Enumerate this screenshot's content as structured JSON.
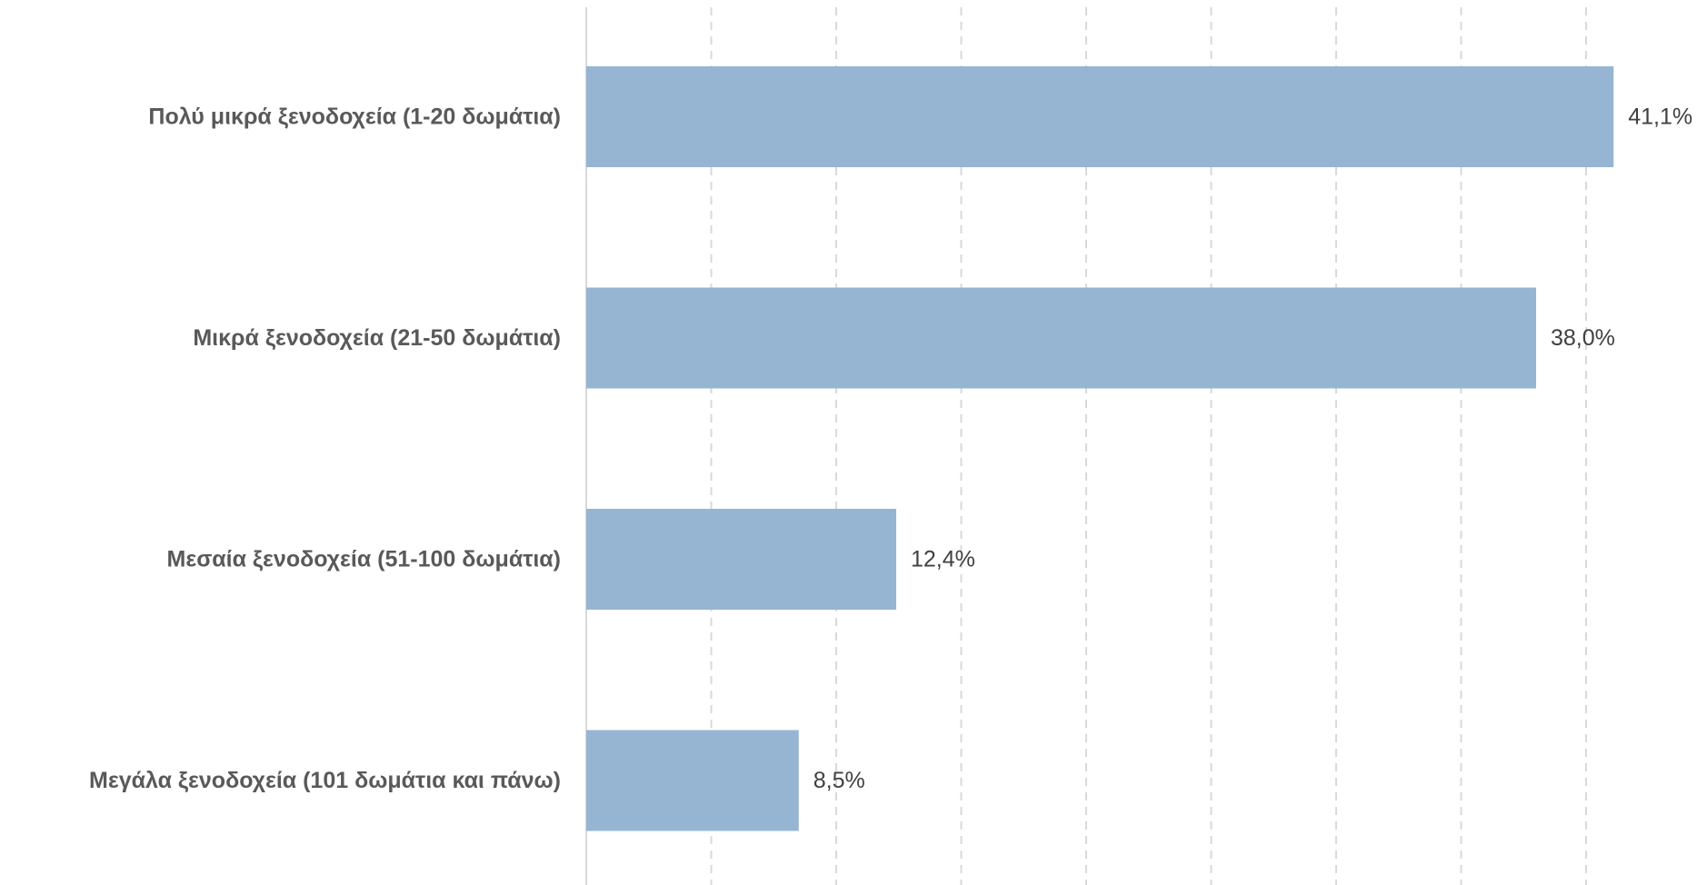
{
  "chart_data": {
    "type": "bar",
    "orientation": "horizontal",
    "categories": [
      "Πολύ μικρά ξενοδοχεία (1-20 δωμάτια)",
      "Μικρά ξενοδοχεία (21-50 δωμάτια)",
      "Μεσαία ξενοδοχεία (51-100 δωμάτια)",
      "Μεγάλα ξενοδοχεία (101 δωμάτια και πάνω)"
    ],
    "values": [
      41.1,
      38.0,
      12.4,
      8.5
    ],
    "value_labels": [
      "41,1%",
      "38,0%",
      "12,4%",
      "8,5%"
    ],
    "xlim": [
      0,
      45
    ],
    "x_gridlines": [
      5,
      10,
      15,
      20,
      25,
      30,
      35,
      40
    ],
    "grid": "vertical-dashed",
    "bar_color": "#95b5d3",
    "grid_color": "#d9d9d9",
    "legend": "none",
    "title": "",
    "xlabel": "",
    "ylabel": ""
  }
}
